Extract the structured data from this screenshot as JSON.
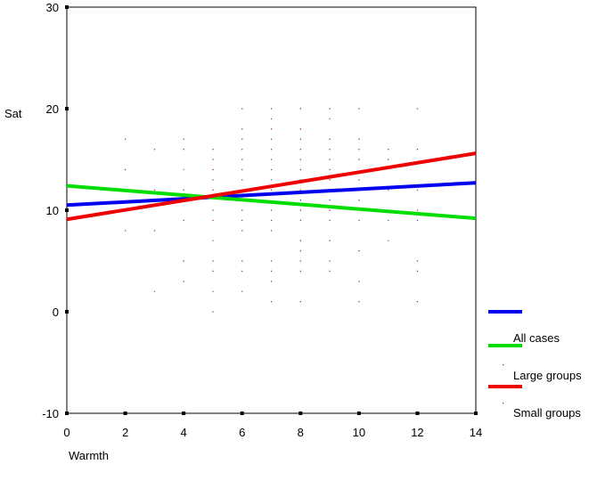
{
  "chart_data": {
    "type": "scatter",
    "xlabel": "Warmth",
    "ylabel": "Sat",
    "xlim": [
      0,
      14
    ],
    "ylim": [
      -10,
      30
    ],
    "x_ticks": [
      0,
      2,
      4,
      6,
      8,
      10,
      12,
      14
    ],
    "y_ticks": [
      -10,
      0,
      10,
      20,
      30
    ],
    "grid": false,
    "legend_position": "right-bottom",
    "legend": [
      "",
      "All cases",
      "Large groups",
      "Small groups"
    ],
    "lines": [
      {
        "color": "#0000ee",
        "points": [
          [
            0,
            10.5
          ],
          [
            14,
            12.7
          ]
        ]
      },
      {
        "color": "#00dd00",
        "points": [
          [
            0,
            12.4
          ],
          [
            14,
            9.2
          ]
        ]
      },
      {
        "color": "#ee0000",
        "points": [
          [
            0,
            9.1
          ],
          [
            14,
            15.6
          ]
        ]
      }
    ],
    "points": [
      [
        0,
        10,
        "#0000aa"
      ],
      [
        2,
        17,
        "#3366aa"
      ],
      [
        2,
        14,
        "#aa3355"
      ],
      [
        2,
        8,
        "#3366aa"
      ],
      [
        3,
        16,
        "#4466aa"
      ],
      [
        3,
        12,
        "#aa3355"
      ],
      [
        3,
        8,
        "#3366aa"
      ],
      [
        3,
        2,
        "#6677aa"
      ],
      [
        4,
        17,
        "#3366aa"
      ],
      [
        4,
        16,
        "#aa3355"
      ],
      [
        4,
        14,
        "#3388aa"
      ],
      [
        4,
        12,
        "#aa3355"
      ],
      [
        4,
        11,
        "#3366aa"
      ],
      [
        4,
        9,
        "#aa3355"
      ],
      [
        4,
        5,
        "#aa3355"
      ],
      [
        4,
        3,
        "#3366aa"
      ],
      [
        5,
        16,
        "#aa3355"
      ],
      [
        5,
        15,
        "#3366aa"
      ],
      [
        5,
        14,
        "#aa3355"
      ],
      [
        5,
        13,
        "#3366aa"
      ],
      [
        5,
        12,
        "#aa3355"
      ],
      [
        5,
        10,
        "#3366aa"
      ],
      [
        5,
        9,
        "#aa3355"
      ],
      [
        5,
        7,
        "#3399aa"
      ],
      [
        5,
        5,
        "#aa3355"
      ],
      [
        5,
        4,
        "#3366aa"
      ],
      [
        5,
        2,
        "#6677aa"
      ],
      [
        5,
        0,
        "#3366aa"
      ],
      [
        6,
        20,
        "#aa3355"
      ],
      [
        6,
        18,
        "#3366aa"
      ],
      [
        6,
        17,
        "#aa3355"
      ],
      [
        6,
        16,
        "#3366aa"
      ],
      [
        6,
        15,
        "#aa3355"
      ],
      [
        6,
        14,
        "#3366aa"
      ],
      [
        6,
        13,
        "#aa3355"
      ],
      [
        6,
        12,
        "#3366aa"
      ],
      [
        6,
        11,
        "#aa3355"
      ],
      [
        6,
        10,
        "#3366aa"
      ],
      [
        6,
        9,
        "#aa3355"
      ],
      [
        6,
        8,
        "#3366aa"
      ],
      [
        6,
        5,
        "#aa3355"
      ],
      [
        6,
        4,
        "#3366aa"
      ],
      [
        6,
        2,
        "#6677aa"
      ],
      [
        7,
        20,
        "#aa3355"
      ],
      [
        7,
        19,
        "#3366aa"
      ],
      [
        7,
        18,
        "#aa3355"
      ],
      [
        7,
        17,
        "#3366aa"
      ],
      [
        7,
        16,
        "#aa3355"
      ],
      [
        7,
        15,
        "#3366aa"
      ],
      [
        7,
        14,
        "#aa3355"
      ],
      [
        7,
        13,
        "#3366aa"
      ],
      [
        7,
        12,
        "#aa3355"
      ],
      [
        7,
        10,
        "#3366aa"
      ],
      [
        7,
        9,
        "#aa3355"
      ],
      [
        7,
        8,
        "#3366aa"
      ],
      [
        7,
        5,
        "#aa3355"
      ],
      [
        7,
        4,
        "#3366aa"
      ],
      [
        7,
        3,
        "#aa3355"
      ],
      [
        7,
        1,
        "#3366aa"
      ],
      [
        8,
        20,
        "#3366aa"
      ],
      [
        8,
        18,
        "#aa3355"
      ],
      [
        8,
        17,
        "#3366aa"
      ],
      [
        8,
        16,
        "#aa3355"
      ],
      [
        8,
        15,
        "#3366aa"
      ],
      [
        8,
        14,
        "#aa3355"
      ],
      [
        8,
        13,
        "#3366aa"
      ],
      [
        8,
        12,
        "#aa3355"
      ],
      [
        8,
        11,
        "#3366aa"
      ],
      [
        8,
        10,
        "#aa3355"
      ],
      [
        8,
        9,
        "#3366aa"
      ],
      [
        8,
        7,
        "#aa3355"
      ],
      [
        8,
        6,
        "#3366aa"
      ],
      [
        8,
        5,
        "#aa3355"
      ],
      [
        8,
        4,
        "#3366aa"
      ],
      [
        8,
        1,
        "#aa3355"
      ],
      [
        9,
        20,
        "#aa3355"
      ],
      [
        9,
        19,
        "#3366aa"
      ],
      [
        9,
        17,
        "#aa3355"
      ],
      [
        9,
        16,
        "#3366aa"
      ],
      [
        9,
        15,
        "#aa3355"
      ],
      [
        9,
        14,
        "#3366aa"
      ],
      [
        9,
        13,
        "#aa3355"
      ],
      [
        9,
        11,
        "#3366aa"
      ],
      [
        9,
        10,
        "#aa3355"
      ],
      [
        9,
        9,
        "#3366aa"
      ],
      [
        9,
        7,
        "#aa3355"
      ],
      [
        9,
        5,
        "#3366aa"
      ],
      [
        9,
        4,
        "#aa3355"
      ],
      [
        10,
        20,
        "#3366aa"
      ],
      [
        10,
        17,
        "#aa3355"
      ],
      [
        10,
        16,
        "#3366aa"
      ],
      [
        10,
        15,
        "#aa3355"
      ],
      [
        10,
        13,
        "#3366aa"
      ],
      [
        10,
        11,
        "#aa3355"
      ],
      [
        10,
        9,
        "#3366aa"
      ],
      [
        10,
        6,
        "#aa3355"
      ],
      [
        10,
        3,
        "#3366aa"
      ],
      [
        10,
        1,
        "#aa3355"
      ],
      [
        11,
        16,
        "#3366aa"
      ],
      [
        11,
        15,
        "#aa3355"
      ],
      [
        11,
        12,
        "#3366aa"
      ],
      [
        11,
        10,
        "#aa3355"
      ],
      [
        11,
        9,
        "#3366aa"
      ],
      [
        11,
        7,
        "#6677aa"
      ],
      [
        12,
        20,
        "#3366aa"
      ],
      [
        12,
        16,
        "#aa3355"
      ],
      [
        12,
        12,
        "#3366aa"
      ],
      [
        12,
        10,
        "#aa3355"
      ],
      [
        12,
        9,
        "#3366aa"
      ],
      [
        12,
        5,
        "#aa3355"
      ],
      [
        12,
        4,
        "#3366aa"
      ],
      [
        12,
        1,
        "#aa3355"
      ]
    ]
  }
}
